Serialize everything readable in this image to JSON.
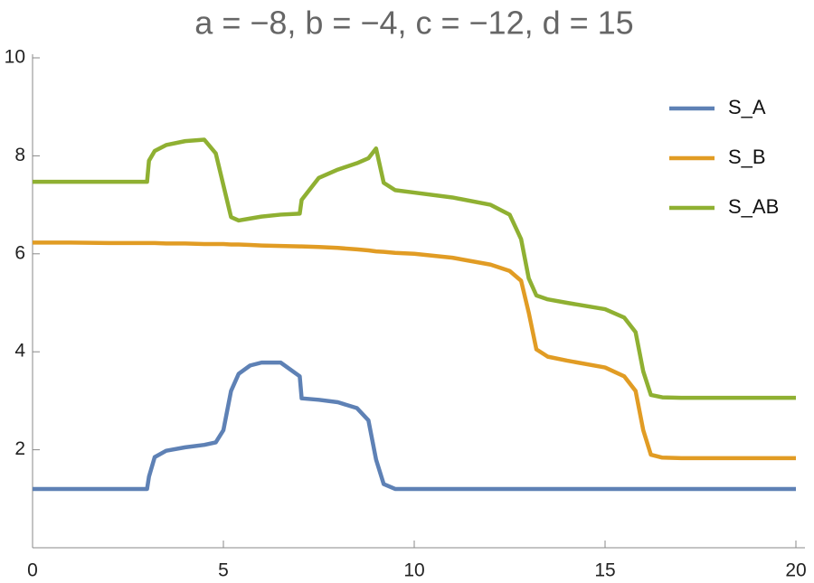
{
  "chart_data": {
    "type": "line",
    "title": "a = −8, b = −4, c = −12, d = 15",
    "x": [
      0,
      1,
      2,
      3,
      3.05,
      3.2,
      3.5,
      4,
      4.5,
      4.8,
      5,
      5.2,
      5.4,
      5.7,
      6,
      6.5,
      7,
      7.05,
      7.5,
      8,
      8.5,
      8.8,
      9,
      9.2,
      9.5,
      10,
      11,
      12,
      12.5,
      12.8,
      13,
      13.2,
      13.5,
      14,
      15,
      15.5,
      15.8,
      16,
      16.2,
      16.5,
      17,
      18,
      19,
      20
    ],
    "series": [
      {
        "name": "S_A",
        "color": "#5e81b5",
        "values": [
          1.2,
          1.2,
          1.2,
          1.2,
          1.45,
          1.85,
          1.98,
          2.05,
          2.1,
          2.15,
          2.4,
          3.2,
          3.55,
          3.72,
          3.78,
          3.78,
          3.5,
          3.05,
          3.02,
          2.97,
          2.85,
          2.6,
          1.8,
          1.3,
          1.2,
          1.2,
          1.2,
          1.2,
          1.2,
          1.2,
          1.2,
          1.2,
          1.2,
          1.2,
          1.2,
          1.2,
          1.2,
          1.2,
          1.2,
          1.2,
          1.2,
          1.2,
          1.2,
          1.2
        ]
      },
      {
        "name": "S_B",
        "color": "#e19c24",
        "values": [
          6.23,
          6.23,
          6.22,
          6.22,
          6.22,
          6.22,
          6.21,
          6.21,
          6.2,
          6.2,
          6.2,
          6.19,
          6.19,
          6.18,
          6.17,
          6.16,
          6.15,
          6.15,
          6.14,
          6.12,
          6.09,
          6.07,
          6.05,
          6.04,
          6.02,
          6.0,
          5.92,
          5.78,
          5.65,
          5.45,
          4.8,
          4.05,
          3.9,
          3.82,
          3.68,
          3.5,
          3.2,
          2.4,
          1.9,
          1.84,
          1.83,
          1.83,
          1.83,
          1.83
        ]
      },
      {
        "name": "S_AB",
        "color": "#8fb032",
        "values": [
          7.47,
          7.47,
          7.47,
          7.47,
          7.9,
          8.1,
          8.22,
          8.3,
          8.33,
          8.05,
          7.4,
          6.75,
          6.68,
          6.72,
          6.76,
          6.8,
          6.82,
          7.1,
          7.55,
          7.72,
          7.85,
          7.95,
          8.15,
          7.45,
          7.3,
          7.25,
          7.15,
          7.0,
          6.8,
          6.3,
          5.5,
          5.15,
          5.07,
          5.0,
          4.87,
          4.7,
          4.4,
          3.6,
          3.12,
          3.07,
          3.06,
          3.06,
          3.06,
          3.06
        ]
      }
    ],
    "xlim": [
      0,
      20
    ],
    "ylim": [
      0,
      10
    ],
    "xticks": [
      0,
      5,
      10,
      15,
      20
    ],
    "yticks": [
      2,
      4,
      6,
      8,
      10
    ]
  }
}
